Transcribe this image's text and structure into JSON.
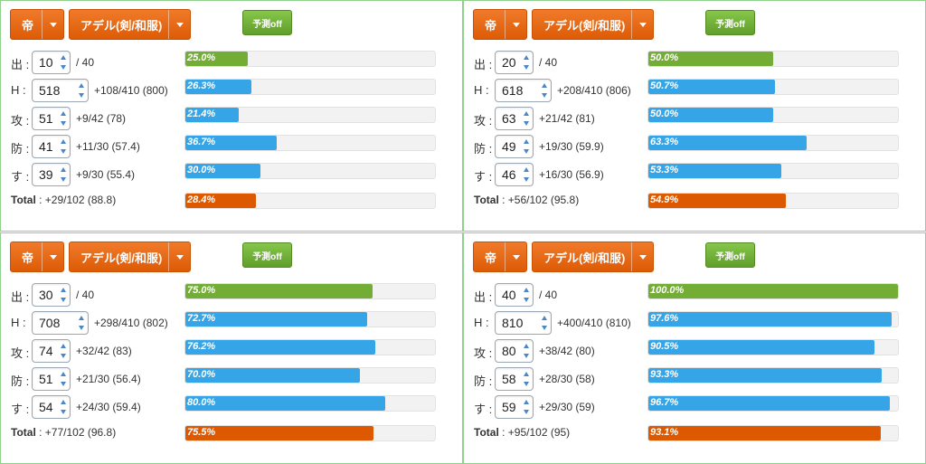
{
  "panels": [
    {
      "emperor_label": "帝",
      "character_label": "アデル(剣/和服)",
      "predict_label": "予測off",
      "stats": [
        {
          "name": "出",
          "value": "10",
          "info": "/ 40",
          "pct_label": "25.0%",
          "pct": 25.0,
          "color": "green"
        },
        {
          "name": "H",
          "value": "518",
          "info": "+108/410 (800)",
          "pct_label": "26.3%",
          "pct": 26.3,
          "color": "blue"
        },
        {
          "name": "攻",
          "value": "51",
          "info": "+9/42 (78)",
          "pct_label": "21.4%",
          "pct": 21.4,
          "color": "blue"
        },
        {
          "name": "防",
          "value": "41",
          "info": "+11/30 (57.4)",
          "pct_label": "36.7%",
          "pct": 36.7,
          "color": "blue"
        },
        {
          "name": "す",
          "value": "39",
          "info": "+9/30 (55.4)",
          "pct_label": "30.0%",
          "pct": 30.0,
          "color": "blue"
        }
      ],
      "total_label": "Total",
      "total_info": ": +29/102 (88.8)",
      "total_pct_label": "28.4%",
      "total_pct": 28.4
    },
    {
      "emperor_label": "帝",
      "character_label": "アデル(剣/和服)",
      "predict_label": "予測off",
      "stats": [
        {
          "name": "出",
          "value": "20",
          "info": "/ 40",
          "pct_label": "50.0%",
          "pct": 50.0,
          "color": "green"
        },
        {
          "name": "H",
          "value": "618",
          "info": "+208/410 (806)",
          "pct_label": "50.7%",
          "pct": 50.7,
          "color": "blue"
        },
        {
          "name": "攻",
          "value": "63",
          "info": "+21/42 (81)",
          "pct_label": "50.0%",
          "pct": 50.0,
          "color": "blue"
        },
        {
          "name": "防",
          "value": "49",
          "info": "+19/30 (59.9)",
          "pct_label": "63.3%",
          "pct": 63.3,
          "color": "blue"
        },
        {
          "name": "す",
          "value": "46",
          "info": "+16/30 (56.9)",
          "pct_label": "53.3%",
          "pct": 53.3,
          "color": "blue"
        }
      ],
      "total_label": "Total",
      "total_info": ": +56/102 (95.8)",
      "total_pct_label": "54.9%",
      "total_pct": 54.9
    },
    {
      "emperor_label": "帝",
      "character_label": "アデル(剣/和服)",
      "predict_label": "予測off",
      "stats": [
        {
          "name": "出",
          "value": "30",
          "info": "/ 40",
          "pct_label": "75.0%",
          "pct": 75.0,
          "color": "green"
        },
        {
          "name": "H",
          "value": "708",
          "info": "+298/410 (802)",
          "pct_label": "72.7%",
          "pct": 72.7,
          "color": "blue"
        },
        {
          "name": "攻",
          "value": "74",
          "info": "+32/42 (83)",
          "pct_label": "76.2%",
          "pct": 76.2,
          "color": "blue"
        },
        {
          "name": "防",
          "value": "51",
          "info": "+21/30 (56.4)",
          "pct_label": "70.0%",
          "pct": 70.0,
          "color": "blue"
        },
        {
          "name": "す",
          "value": "54",
          "info": "+24/30 (59.4)",
          "pct_label": "80.0%",
          "pct": 80.0,
          "color": "blue"
        }
      ],
      "total_label": "Total",
      "total_info": ": +77/102 (96.8)",
      "total_pct_label": "75.5%",
      "total_pct": 75.5
    },
    {
      "emperor_label": "帝",
      "character_label": "アデル(剣/和服)",
      "predict_label": "予測off",
      "stats": [
        {
          "name": "出",
          "value": "40",
          "info": "/ 40",
          "pct_label": "100.0%",
          "pct": 100.0,
          "color": "green"
        },
        {
          "name": "H",
          "value": "810",
          "info": "+400/410 (810)",
          "pct_label": "97.6%",
          "pct": 97.6,
          "color": "blue"
        },
        {
          "name": "攻",
          "value": "80",
          "info": "+38/42 (80)",
          "pct_label": "90.5%",
          "pct": 90.5,
          "color": "blue"
        },
        {
          "name": "防",
          "value": "58",
          "info": "+28/30 (58)",
          "pct_label": "93.3%",
          "pct": 93.3,
          "color": "blue"
        },
        {
          "name": "す",
          "value": "59",
          "info": "+29/30 (59)",
          "pct_label": "96.7%",
          "pct": 96.7,
          "color": "blue"
        }
      ],
      "total_label": "Total",
      "total_info": ": +95/102 (95)",
      "total_pct_label": "93.1%",
      "total_pct": 93.1
    }
  ],
  "colors": {
    "green": "#73ad35",
    "blue": "#36a5e8",
    "orange": "#dd5900",
    "panel_border": "#8fd08f"
  }
}
